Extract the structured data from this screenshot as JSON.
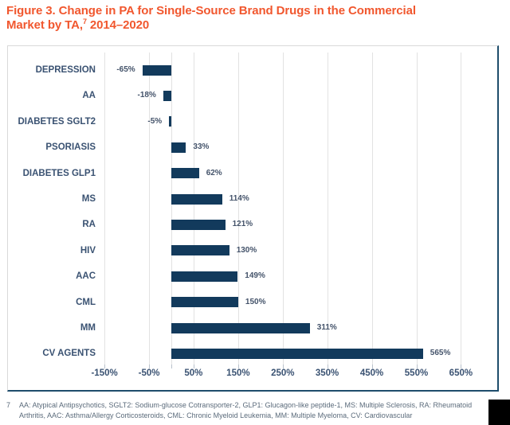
{
  "title": {
    "line1": "Figure 3. Change in PA for Single-Source Brand Drugs in the Commercial",
    "line2_pre": "Market by TA,",
    "line2_sup": "7",
    "line2_post": " 2014–2020"
  },
  "colors": {
    "title": "#F1572E",
    "bar": "#123A5C",
    "category_label": "#3A5272",
    "value_label": "#44536A",
    "gridline": "#E2E2E2",
    "box_border_dark": "#1E4D6C",
    "footnote": "#5B6B7B"
  },
  "chart_data": {
    "type": "bar",
    "orientation": "horizontal",
    "title": "Change in PA for Single-Source Brand Drugs in the Commercial Market by TA, 2014–2020",
    "categories": [
      "DEPRESSION",
      "AA",
      "DIABETES SGLT2",
      "PSORIASIS",
      "DIABETES GLP1",
      "MS",
      "RA",
      "HIV",
      "AAC",
      "CML",
      "MM",
      "CV AGENTS"
    ],
    "values": [
      -65,
      -18,
      -5,
      33,
      62,
      114,
      121,
      130,
      149,
      150,
      311,
      565
    ],
    "value_labels": [
      "-65%",
      "-18%",
      "-5%",
      "33%",
      "62%",
      "114%",
      "121%",
      "130%",
      "149%",
      "150%",
      "311%",
      "565%"
    ],
    "x_tick_values": [
      -150,
      -50,
      50,
      150,
      250,
      350,
      450,
      550,
      650
    ],
    "x_tick_labels": [
      "-150%",
      "-50%",
      "50%",
      "150%",
      "250%",
      "350%",
      "450%",
      "550%",
      "650%"
    ],
    "xlim": [
      -150,
      650
    ],
    "zero_baseline": true,
    "grid": true,
    "legend": false,
    "bar_color": "#123A5C"
  },
  "footnote": {
    "marker": "7",
    "text": "AA: Atypical Antipsychotics, SGLT2: Sodium-glucose Cotransporter-2, GLP1: Glucagon-like peptide-1, MS: Multiple Sclerosis, RA: Rheumatoid Arthritis, AAC: Asthma/Allergy Corticosteroids, CML: Chronic Myeloid Leukemia, MM: Multiple Myeloma, CV: Cardiovascular"
  }
}
